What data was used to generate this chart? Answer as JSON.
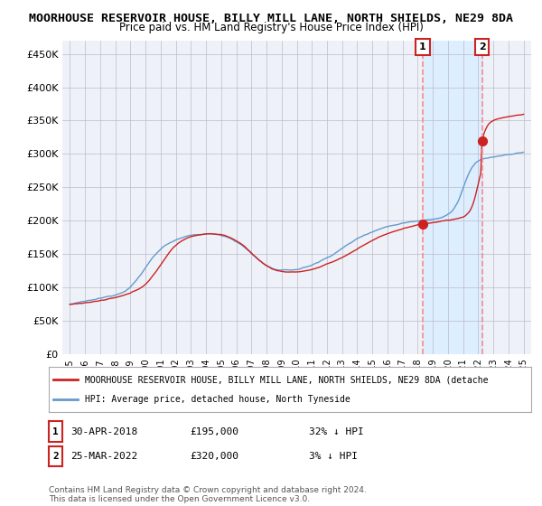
{
  "title": "MOORHOUSE RESERVOIR HOUSE, BILLY MILL LANE, NORTH SHIELDS, NE29 8DA",
  "subtitle": "Price paid vs. HM Land Registry's House Price Index (HPI)",
  "title_fontsize": 9.5,
  "subtitle_fontsize": 8.5,
  "ylabel_ticks": [
    "£0",
    "£50K",
    "£100K",
    "£150K",
    "£200K",
    "£250K",
    "£300K",
    "£350K",
    "£400K",
    "£450K"
  ],
  "ytick_values": [
    0,
    50000,
    100000,
    150000,
    200000,
    250000,
    300000,
    350000,
    400000,
    450000
  ],
  "ylim": [
    0,
    470000
  ],
  "xlim_start": 1994.5,
  "xlim_end": 2025.5,
  "xtick_years": [
    1995,
    1996,
    1997,
    1998,
    1999,
    2000,
    2001,
    2002,
    2003,
    2004,
    2005,
    2006,
    2007,
    2008,
    2009,
    2010,
    2011,
    2012,
    2013,
    2014,
    2015,
    2016,
    2017,
    2018,
    2019,
    2020,
    2021,
    2022,
    2023,
    2024,
    2025
  ],
  "hpi_color": "#6699cc",
  "price_color": "#cc2222",
  "dashed_line_color": "#ff8888",
  "shade_color": "#ddeeff",
  "marker_color": "#cc2222",
  "annotation_box_color": "#ffffff",
  "annotation_border_color": "#cc2222",
  "legend_text_red": "MOORHOUSE RESERVOIR HOUSE, BILLY MILL LANE, NORTH SHIELDS, NE29 8DA (detache",
  "legend_text_blue": "HPI: Average price, detached house, North Tyneside",
  "sale1_label": "1",
  "sale1_date": "30-APR-2018",
  "sale1_price": "£195,000",
  "sale1_hpi": "32% ↓ HPI",
  "sale1_year": 2018.33,
  "sale1_value": 195000,
  "sale2_label": "2",
  "sale2_date": "25-MAR-2022",
  "sale2_price": "£320,000",
  "sale2_hpi": "3% ↓ HPI",
  "sale2_year": 2022.25,
  "sale2_value": 320000,
  "footer": "Contains HM Land Registry data © Crown copyright and database right 2024.\nThis data is licensed under the Open Government Licence v3.0.",
  "background_color": "#ffffff",
  "plot_bg_color": "#eef2f8"
}
